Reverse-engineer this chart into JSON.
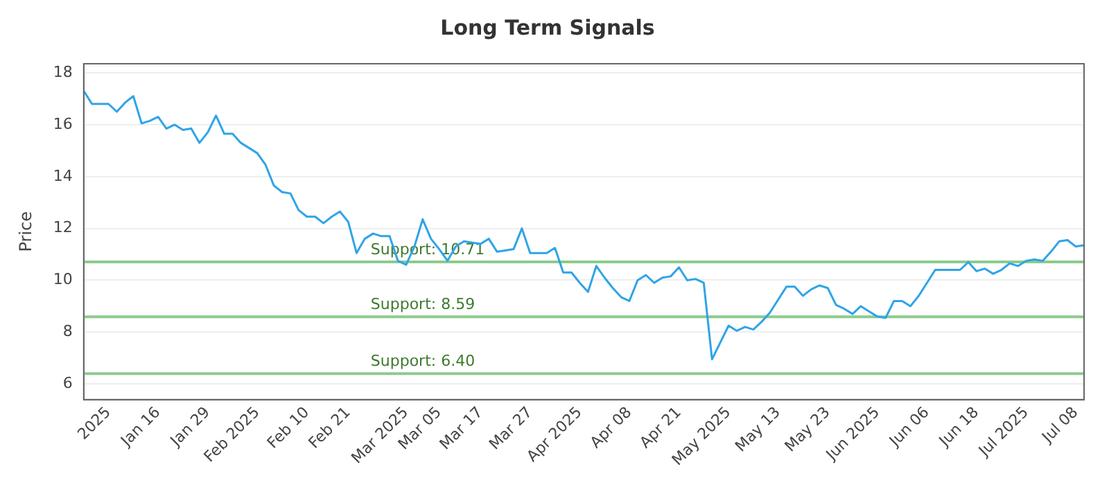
{
  "chart_data": {
    "type": "line",
    "title": "Long Term Signals",
    "ylabel": "Price",
    "categories": [
      null,
      null,
      null,
      "2025",
      null,
      null,
      null,
      null,
      null,
      "Jan 16",
      null,
      null,
      null,
      null,
      null,
      "Jan 29",
      null,
      null,
      null,
      null,
      null,
      "Feb 2025",
      null,
      null,
      null,
      null,
      null,
      "Feb 10",
      null,
      null,
      null,
      null,
      "Feb 21",
      null,
      null,
      null,
      null,
      null,
      null,
      "Mar 2025",
      null,
      null,
      null,
      "Mar 05",
      null,
      null,
      null,
      null,
      "Mar 17",
      null,
      null,
      null,
      null,
      null,
      "Mar 27",
      null,
      null,
      null,
      null,
      null,
      "Apr 2025",
      null,
      null,
      null,
      null,
      null,
      "Apr 08",
      null,
      null,
      null,
      null,
      null,
      "Apr 21",
      null,
      null,
      null,
      null,
      null,
      "May 2025",
      null,
      null,
      null,
      null,
      null,
      "May 13",
      null,
      null,
      null,
      null,
      null,
      "May 23",
      null,
      null,
      null,
      null,
      null,
      "Jun 2025",
      null,
      null,
      null,
      null,
      null,
      "Jun 06",
      null,
      null,
      null,
      null,
      null,
      "Jun 18",
      null,
      null,
      null,
      null,
      null,
      "Jul 2025",
      null,
      null,
      null,
      null,
      null,
      "Jul 08",
      null
    ],
    "series": [
      {
        "color": "#2fa4e7",
        "values": [
          17.3,
          16.8,
          16.8,
          16.8,
          16.5,
          16.85,
          17.1,
          16.05,
          16.15,
          16.3,
          15.85,
          16.0,
          15.8,
          15.85,
          15.3,
          15.7,
          16.35,
          15.65,
          15.65,
          15.3,
          15.1,
          14.9,
          14.45,
          13.65,
          13.4,
          13.35,
          12.7,
          12.45,
          12.45,
          12.2,
          12.45,
          12.65,
          12.25,
          11.05,
          11.6,
          11.8,
          11.7,
          11.7,
          10.75,
          10.6,
          11.3,
          12.35,
          11.6,
          11.2,
          10.75,
          11.3,
          11.5,
          11.45,
          11.4,
          11.6,
          11.1,
          11.15,
          11.2,
          12.0,
          11.05,
          11.05,
          11.05,
          11.25,
          10.3,
          10.3,
          9.9,
          9.55,
          10.55,
          10.1,
          9.7,
          9.35,
          9.2,
          10.0,
          10.2,
          9.9,
          10.1,
          10.15,
          10.5,
          10.0,
          10.05,
          9.9,
          6.95,
          7.6,
          8.25,
          8.05,
          8.2,
          8.1,
          8.4,
          8.75,
          9.25,
          9.75,
          9.75,
          9.4,
          9.65,
          9.8,
          9.7,
          9.05,
          8.9,
          8.7,
          9.0,
          8.8,
          8.6,
          8.55,
          9.2,
          9.2,
          9.0,
          9.4,
          9.9,
          10.4,
          10.4,
          10.4,
          10.4,
          10.7,
          10.35,
          10.45,
          10.25,
          10.4,
          10.65,
          10.55,
          10.75,
          10.8,
          10.75,
          11.1,
          11.5,
          11.55,
          11.3,
          11.35
        ]
      }
    ],
    "ylim": [
      5.4,
      18.35
    ],
    "yticks": [
      6,
      8,
      10,
      12,
      14,
      16,
      18
    ],
    "grid": "y",
    "marker": "none",
    "line_style": "solid",
    "legend": false,
    "ref_lines": [
      {
        "axis": "y",
        "value": 10.71,
        "label": "Support: 10.71",
        "color": "#8ccb8c"
      },
      {
        "axis": "y",
        "value": 8.59,
        "label": "Support: 8.59",
        "color": "#8ccb8c"
      },
      {
        "axis": "y",
        "value": 6.4,
        "label": "Support: 6.40",
        "color": "#8ccb8c"
      }
    ]
  }
}
